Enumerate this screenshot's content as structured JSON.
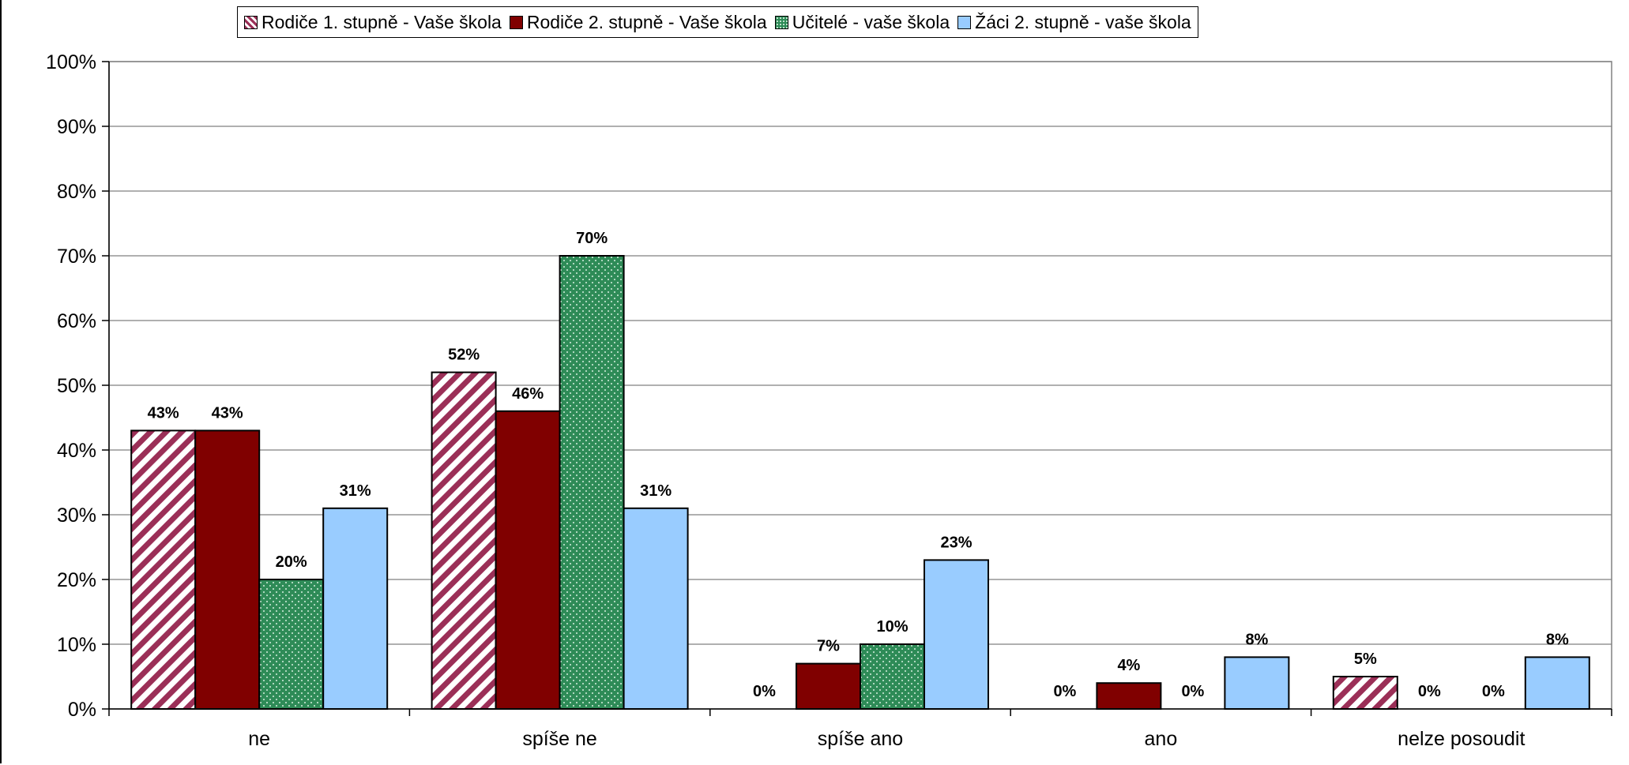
{
  "chart_data": {
    "type": "bar",
    "categories": [
      "ne",
      "spíše ne",
      "spíše ano",
      "ano",
      "nelze posoudit"
    ],
    "series": [
      {
        "name": "Rodiče 1. stupně - Vaše škola",
        "values": [
          43,
          52,
          0,
          0,
          5
        ],
        "labels": [
          "43%",
          "52%",
          "0%",
          "0%",
          "5%"
        ],
        "color": "#9B2F57",
        "pattern": "diagonal-stripes"
      },
      {
        "name": "Rodiče 2. stupně - Vaše škola",
        "values": [
          43,
          46,
          7,
          4,
          0
        ],
        "labels": [
          "43%",
          "46%",
          "7%",
          "4%",
          "0%"
        ],
        "color": "#800000",
        "pattern": "solid"
      },
      {
        "name": "Učitelé - vaše škola",
        "values": [
          20,
          70,
          10,
          0,
          0
        ],
        "labels": [
          "20%",
          "70%",
          "10%",
          "0%",
          "0%"
        ],
        "color": "#2E8B57",
        "pattern": "dots"
      },
      {
        "name": "Žáci 2. stupně - vaše škola",
        "values": [
          31,
          31,
          23,
          8,
          8
        ],
        "labels": [
          "31%",
          "31%",
          "23%",
          "8%",
          "8%"
        ],
        "color": "#99CCFF",
        "pattern": "solid"
      }
    ],
    "y_ticks": [
      "0%",
      "10%",
      "20%",
      "30%",
      "40%",
      "50%",
      "60%",
      "70%",
      "80%",
      "90%",
      "100%"
    ],
    "ylim": [
      0,
      100
    ],
    "title": "",
    "xlabel": "",
    "ylabel": "",
    "grid": true,
    "legend_position": "top"
  }
}
